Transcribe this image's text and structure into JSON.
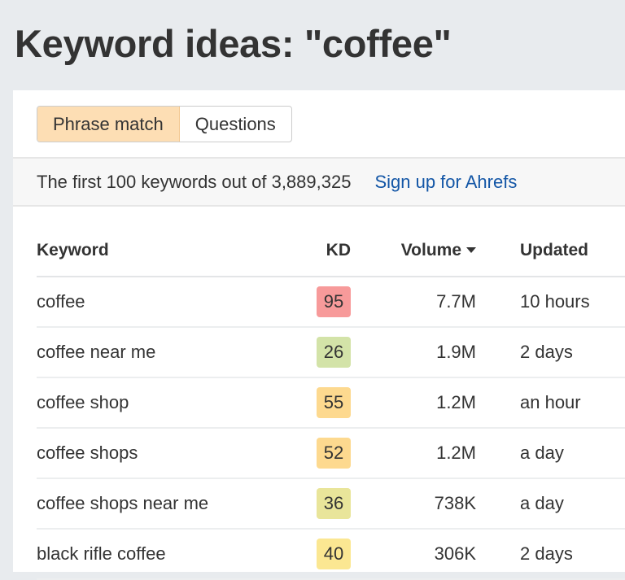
{
  "title": "Keyword ideas: \"coffee\"",
  "tabs": [
    {
      "label": "Phrase match",
      "active": true
    },
    {
      "label": "Questions",
      "active": false
    }
  ],
  "summary": {
    "text": "The first 100 keywords out of 3,889,325",
    "link": "Sign up for Ahrefs"
  },
  "columns": {
    "keyword": "Keyword",
    "kd": "KD",
    "volume": "Volume",
    "updated": "Updated"
  },
  "rows": [
    {
      "keyword": "coffee",
      "kd": "95",
      "kd_color": "#f79a9a",
      "volume": "7.7M",
      "updated": "10 hours"
    },
    {
      "keyword": "coffee near me",
      "kd": "26",
      "kd_color": "#d3e3a8",
      "volume": "1.9M",
      "updated": "2 days"
    },
    {
      "keyword": "coffee shop",
      "kd": "55",
      "kd_color": "#fdd98f",
      "volume": "1.2M",
      "updated": "an hour"
    },
    {
      "keyword": "coffee shops",
      "kd": "52",
      "kd_color": "#fdd98f",
      "volume": "1.2M",
      "updated": "a day"
    },
    {
      "keyword": "coffee shops near me",
      "kd": "36",
      "kd_color": "#e9e59a",
      "volume": "738K",
      "updated": "a day"
    },
    {
      "keyword": "black rifle coffee",
      "kd": "40",
      "kd_color": "#fbe792",
      "volume": "306K",
      "updated": "2 days"
    }
  ]
}
